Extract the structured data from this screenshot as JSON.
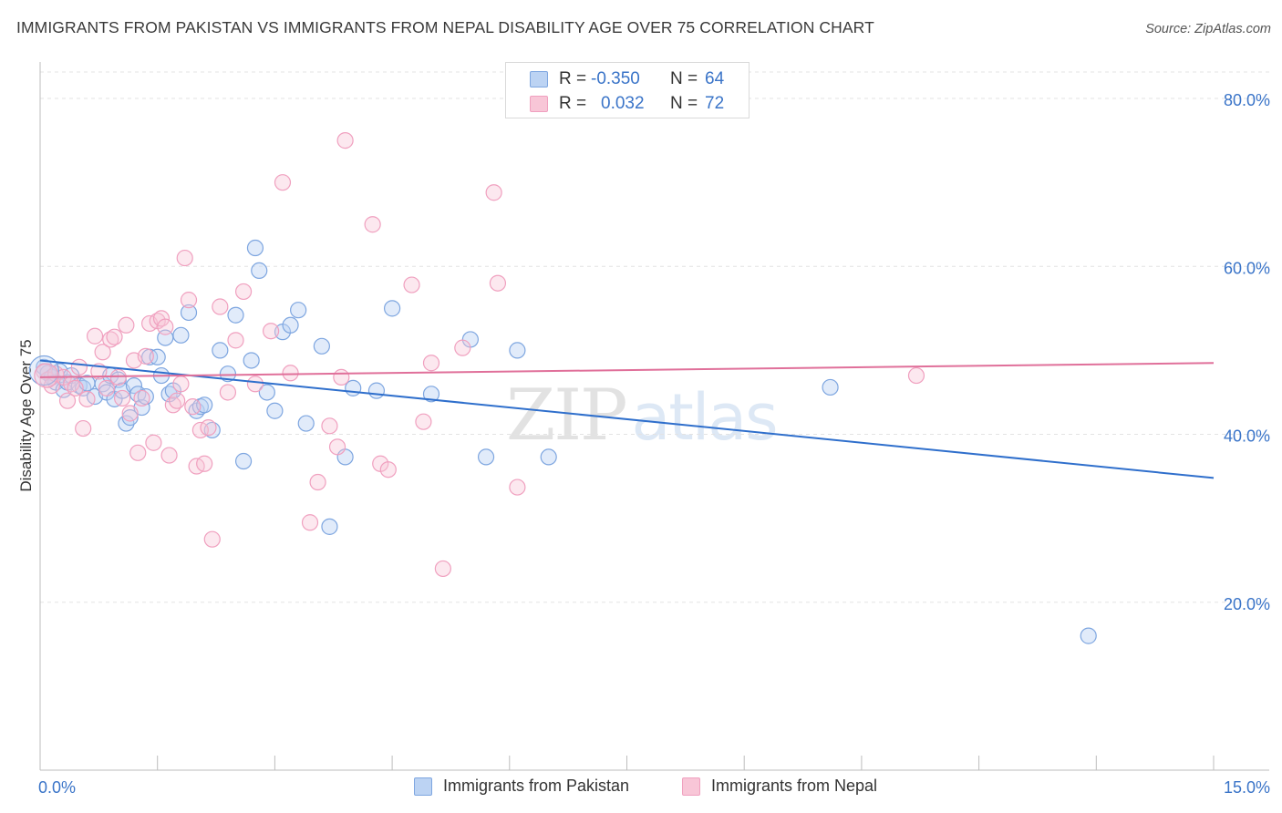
{
  "title": "IMMIGRANTS FROM PAKISTAN VS IMMIGRANTS FROM NEPAL DISABILITY AGE OVER 75 CORRELATION CHART",
  "source": "Source: ZipAtlas.com",
  "watermark": {
    "zip": "ZIP",
    "atlas": "atlas"
  },
  "legend": [
    {
      "r_label": "R =",
      "r_value": "-0.350",
      "n_label": "N =",
      "n_value": "64"
    },
    {
      "r_label": "R =",
      "r_value": "0.032",
      "n_label": "N =",
      "n_value": "72"
    }
  ],
  "bottom_legend": [
    "Immigrants from Pakistan",
    "Immigrants from Nepal"
  ],
  "chart_data": {
    "type": "scatter",
    "title": "IMMIGRANTS FROM PAKISTAN VS IMMIGRANTS FROM NEPAL DISABILITY AGE OVER 75 CORRELATION CHART",
    "xlabel": "",
    "ylabel": "Disability Age Over 75",
    "xlim": [
      0,
      15
    ],
    "ylim": [
      0,
      85
    ],
    "x_tick_labels": [
      {
        "value": 0,
        "label": "0.0%"
      },
      {
        "value": 15,
        "label": "15.0%"
      }
    ],
    "y_tick_labels": [
      {
        "value": 20,
        "label": "20.0%"
      },
      {
        "value": 40,
        "label": "40.0%"
      },
      {
        "value": 60,
        "label": "60.0%"
      },
      {
        "value": 80,
        "label": "80.0%"
      }
    ],
    "grid": true,
    "series": [
      {
        "name": "Immigrants from Pakistan",
        "color": "#7ea6e0",
        "line_color": "#2f6fcc",
        "trend": {
          "x": [
            0,
            15
          ],
          "y": [
            48.8,
            34.8
          ]
        },
        "points": [
          [
            0.05,
            48.0
          ],
          [
            0.1,
            47.3
          ],
          [
            0.15,
            46.8
          ],
          [
            0.2,
            46.2
          ],
          [
            0.25,
            47.5
          ],
          [
            0.3,
            45.3
          ],
          [
            0.35,
            46.2
          ],
          [
            0.4,
            47.0
          ],
          [
            0.5,
            45.8
          ],
          [
            0.55,
            45.5
          ],
          [
            0.6,
            46.1
          ],
          [
            0.7,
            44.5
          ],
          [
            0.8,
            46.0
          ],
          [
            0.85,
            45.0
          ],
          [
            0.9,
            47.0
          ],
          [
            0.95,
            44.2
          ],
          [
            1.0,
            46.5
          ],
          [
            1.05,
            45.2
          ],
          [
            1.1,
            41.3
          ],
          [
            1.15,
            42.0
          ],
          [
            1.2,
            45.8
          ],
          [
            1.25,
            44.8
          ],
          [
            1.3,
            43.2
          ],
          [
            1.35,
            44.5
          ],
          [
            1.4,
            49.2
          ],
          [
            1.5,
            49.2
          ],
          [
            1.55,
            47.0
          ],
          [
            1.6,
            51.5
          ],
          [
            1.65,
            44.8
          ],
          [
            1.7,
            45.2
          ],
          [
            1.8,
            51.8
          ],
          [
            1.9,
            54.5
          ],
          [
            2.0,
            42.8
          ],
          [
            2.05,
            43.3
          ],
          [
            2.1,
            43.5
          ],
          [
            2.2,
            40.5
          ],
          [
            2.3,
            50.0
          ],
          [
            2.4,
            47.2
          ],
          [
            2.5,
            54.2
          ],
          [
            2.6,
            36.8
          ],
          [
            2.7,
            48.8
          ],
          [
            2.75,
            62.2
          ],
          [
            2.8,
            59.5
          ],
          [
            2.9,
            45.0
          ],
          [
            3.0,
            42.8
          ],
          [
            3.1,
            52.2
          ],
          [
            3.2,
            53.0
          ],
          [
            3.3,
            54.8
          ],
          [
            3.4,
            41.3
          ],
          [
            3.6,
            50.5
          ],
          [
            3.7,
            29.0
          ],
          [
            3.9,
            37.3
          ],
          [
            4.0,
            45.5
          ],
          [
            4.3,
            45.2
          ],
          [
            4.5,
            55.0
          ],
          [
            5.0,
            44.8
          ],
          [
            5.5,
            51.3
          ],
          [
            5.7,
            37.3
          ],
          [
            6.1,
            50.0
          ],
          [
            6.5,
            37.3
          ],
          [
            10.1,
            45.6
          ],
          [
            13.4,
            16.0
          ]
        ]
      },
      {
        "name": "Immigrants from Nepal",
        "color": "#f0a0bf",
        "line_color": "#e0709a",
        "trend": {
          "x": [
            0,
            15
          ],
          "y": [
            46.8,
            48.5
          ]
        },
        "points": [
          [
            0.05,
            47.5
          ],
          [
            0.1,
            46.5
          ],
          [
            0.15,
            45.8
          ],
          [
            0.2,
            47.2
          ],
          [
            0.3,
            46.8
          ],
          [
            0.35,
            44.0
          ],
          [
            0.4,
            46.0
          ],
          [
            0.45,
            45.5
          ],
          [
            0.5,
            48.0
          ],
          [
            0.55,
            40.7
          ],
          [
            0.6,
            44.2
          ],
          [
            0.7,
            51.7
          ],
          [
            0.75,
            47.5
          ],
          [
            0.8,
            49.8
          ],
          [
            0.85,
            45.5
          ],
          [
            0.9,
            51.3
          ],
          [
            0.95,
            51.6
          ],
          [
            1.0,
            46.8
          ],
          [
            1.05,
            44.3
          ],
          [
            1.1,
            53.0
          ],
          [
            1.15,
            42.5
          ],
          [
            1.2,
            48.8
          ],
          [
            1.25,
            37.8
          ],
          [
            1.3,
            44.3
          ],
          [
            1.35,
            49.3
          ],
          [
            1.4,
            53.2
          ],
          [
            1.45,
            39.0
          ],
          [
            1.5,
            53.5
          ],
          [
            1.55,
            53.8
          ],
          [
            1.6,
            52.8
          ],
          [
            1.65,
            37.5
          ],
          [
            1.7,
            43.5
          ],
          [
            1.75,
            44.0
          ],
          [
            1.8,
            46.0
          ],
          [
            1.85,
            61.0
          ],
          [
            1.9,
            56.0
          ],
          [
            1.95,
            43.3
          ],
          [
            2.0,
            36.2
          ],
          [
            2.05,
            40.5
          ],
          [
            2.1,
            36.5
          ],
          [
            2.15,
            40.8
          ],
          [
            2.2,
            27.5
          ],
          [
            2.3,
            55.2
          ],
          [
            2.4,
            45.0
          ],
          [
            2.5,
            51.2
          ],
          [
            2.6,
            57.0
          ],
          [
            2.75,
            46.0
          ],
          [
            2.95,
            52.3
          ],
          [
            3.1,
            70.0
          ],
          [
            3.2,
            47.3
          ],
          [
            3.45,
            29.5
          ],
          [
            3.55,
            34.3
          ],
          [
            3.7,
            41.0
          ],
          [
            3.8,
            38.5
          ],
          [
            3.85,
            46.8
          ],
          [
            3.9,
            75.0
          ],
          [
            4.25,
            65.0
          ],
          [
            4.35,
            36.5
          ],
          [
            4.45,
            35.8
          ],
          [
            4.75,
            57.8
          ],
          [
            4.9,
            41.5
          ],
          [
            5.0,
            48.5
          ],
          [
            5.15,
            24.0
          ],
          [
            5.4,
            50.3
          ],
          [
            5.8,
            68.8
          ],
          [
            5.85,
            58.0
          ],
          [
            6.1,
            33.7
          ],
          [
            11.2,
            47.0
          ]
        ]
      }
    ]
  }
}
